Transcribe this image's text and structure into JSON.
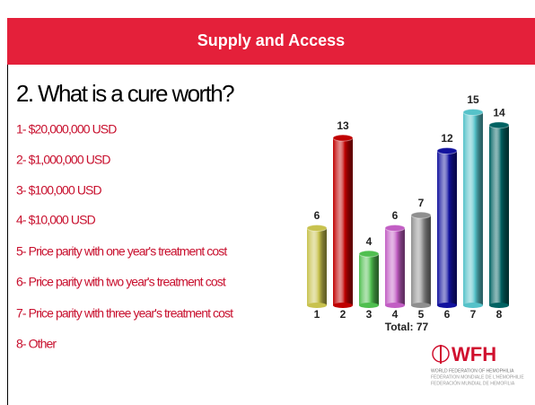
{
  "header": {
    "title": "Supply and Access"
  },
  "question": "2. What is a cure worth?",
  "options": [
    "1- $20,000,000 USD",
    "2- $1,000,000 USD",
    "3- $100,000 USD",
    "4- $10,000 USD",
    "5- Price parity with one year's treatment cost",
    "6- Price parity with two year's treatment cost",
    "7- Price parity with three year's treatment cost",
    "8- Other"
  ],
  "chart_data": {
    "type": "bar",
    "categories": [
      "1",
      "2",
      "3",
      "4",
      "5",
      "6",
      "7",
      "8"
    ],
    "values": [
      6,
      13,
      4,
      6,
      7,
      12,
      15,
      14
    ],
    "colors": [
      "#c8c24e",
      "#c00000",
      "#4fbf4f",
      "#c25ec4",
      "#8f8f8f",
      "#12129e",
      "#55c2c9",
      "#006262"
    ],
    "total_label": "Total: 77"
  },
  "logo": {
    "name": "WFH",
    "lines": [
      "WORLD FEDERATION OF HEMOPHILIA",
      "FÉDÉRATION MONDIALE DE L'HÉMOPHILIE",
      "FEDERACIÓN MUNDIAL DE HEMOFILIA"
    ]
  }
}
